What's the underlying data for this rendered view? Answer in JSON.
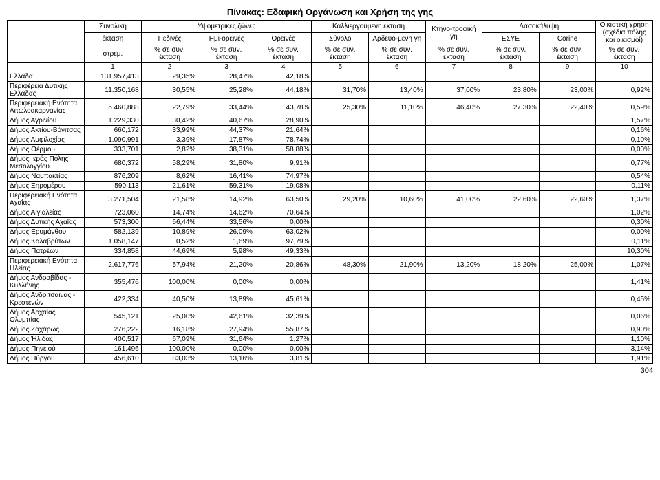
{
  "title": "Πίνακας: Εδαφική Οργάνωση και Χρήση της γης",
  "page_number": "304",
  "header": {
    "r1": {
      "c1": "Συνολική",
      "c2": "Υψομετρικές ζώνες",
      "c3": "Καλλιεργούμενη έκταση",
      "c4": "Κτηνο-τροφική γη",
      "c5": "Δασοκάλυψη",
      "c6": "Οικιστική χρήση (σχέδια πόλης και οικισμοί)"
    },
    "r2": {
      "c1": "έκταση",
      "c2": "Πεδινές",
      "c3": "Ημι-ορεινές",
      "c4": "Ορεινές",
      "c5": "Σύνολο",
      "c6": "Αρδευό-μενη γη",
      "c7": "ΕΣΥΕ",
      "c8": "Corine"
    },
    "r3": {
      "c1": "στρεμ.",
      "c2": "% σε συν. έκταση",
      "c3": "% σε συν. έκταση",
      "c4": "% σε συν. έκταση",
      "c5": "% σε συν. έκταση",
      "c6": "% σε συν. έκταση",
      "c7": "% σε συν. έκταση",
      "c8": "% σε συν. έκταση",
      "c9": "% σε συν. έκταση",
      "c10": "% σε συν. έκταση"
    },
    "r4": [
      "1",
      "2",
      "3",
      "4",
      "5",
      "6",
      "7",
      "8",
      "9",
      "10"
    ]
  },
  "rows": [
    {
      "label": "Ελλάδα",
      "c": [
        "131.957,413",
        "29,35%",
        "28,47%",
        "42,18%",
        "",
        "",
        "",
        "",
        "",
        ""
      ]
    },
    {
      "label": "Περιφέρεια Δυτικής Ελλάδας",
      "c": [
        "11.350,168",
        "30,55%",
        "25,28%",
        "44,18%",
        "31,70%",
        "13,40%",
        "37,00%",
        "23,80%",
        "23,00%",
        "0,92%"
      ]
    },
    {
      "label": "Περιφερειακή Ενότητα Αιτωλοακαρνανίας",
      "c": [
        "5.460,888",
        "22,79%",
        "33,44%",
        "43,78%",
        "25,30%",
        "11,10%",
        "46,40%",
        "27,30%",
        "22,40%",
        "0,59%"
      ]
    },
    {
      "label": "Δήμος Αγρινίου",
      "c": [
        "1.229,330",
        "30,42%",
        "40,67%",
        "28,90%",
        "",
        "",
        "",
        "",
        "",
        "1,57%"
      ]
    },
    {
      "label": "Δήμος Ακτίου-Βόνιτσας",
      "c": [
        "660,172",
        "33,99%",
        "44,37%",
        "21,64%",
        "",
        "",
        "",
        "",
        "",
        "0,16%"
      ]
    },
    {
      "label": "Δήμος Αμφιλοχίας",
      "c": [
        "1.090,991",
        "3,39%",
        "17,87%",
        "78,74%",
        "",
        "",
        "",
        "",
        "",
        "0,10%"
      ]
    },
    {
      "label": "Δήμος Θέρμου",
      "c": [
        "333,701",
        "2,82%",
        "38,31%",
        "58,88%",
        "",
        "",
        "",
        "",
        "",
        "0,00%"
      ]
    },
    {
      "label": "Δήμος Ιεράς Πόλης Μεσολογγίου",
      "c": [
        "680,372",
        "58,29%",
        "31,80%",
        "9,91%",
        "",
        "",
        "",
        "",
        "",
        "0,77%"
      ]
    },
    {
      "label": "Δήμος Ναυπακτίας",
      "c": [
        "876,209",
        "8,62%",
        "16,41%",
        "74,97%",
        "",
        "",
        "",
        "",
        "",
        "0,54%"
      ]
    },
    {
      "label": "Δήμος Ξηρομέρου",
      "c": [
        "590,113",
        "21,61%",
        "59,31%",
        "19,08%",
        "",
        "",
        "",
        "",
        "",
        "0,11%"
      ]
    },
    {
      "label": "Περιφερειακή Ενότητα Αχαΐας",
      "c": [
        "3.271,504",
        "21,58%",
        "14,92%",
        "63,50%",
        "29,20%",
        "10,60%",
        "41,00%",
        "22,60%",
        "22,60%",
        "1,37%"
      ]
    },
    {
      "label": "Δήμος Αιγιαλείας",
      "c": [
        "723,060",
        "14,74%",
        "14,62%",
        "70,64%",
        "",
        "",
        "",
        "",
        "",
        "1,02%"
      ]
    },
    {
      "label": "Δήμος Δυτικής Αχαΐας",
      "c": [
        "573,300",
        "66,44%",
        "33,56%",
        "0,00%",
        "",
        "",
        "",
        "",
        "",
        "0,30%"
      ]
    },
    {
      "label": "Δήμος Ερυμάνθου",
      "c": [
        "582,139",
        "10,89%",
        "26,09%",
        "63,02%",
        "",
        "",
        "",
        "",
        "",
        "0,00%"
      ]
    },
    {
      "label": "Δήμος Καλαβρύτων",
      "c": [
        "1.058,147",
        "0,52%",
        "1,69%",
        "97,79%",
        "",
        "",
        "",
        "",
        "",
        "0,11%"
      ]
    },
    {
      "label": "Δήμος Πατρέων",
      "c": [
        "334,858",
        "44,69%",
        "5,98%",
        "49,33%",
        "",
        "",
        "",
        "",
        "",
        "10,30%"
      ]
    },
    {
      "label": "Περιφερειακή Ενότητα Ηλείας",
      "c": [
        "2.617,776",
        "57,94%",
        "21,20%",
        "20,86%",
        "48,30%",
        "21,90%",
        "13,20%",
        "18,20%",
        "25,00%",
        "1,07%"
      ]
    },
    {
      "label": "Δήμος Ανδραβίδας - Κυλλήνης",
      "c": [
        "355,476",
        "100,00%",
        "0,00%",
        "0,00%",
        "",
        "",
        "",
        "",
        "",
        "1,41%"
      ]
    },
    {
      "label": "Δήμος Ανδρίτσαινας - Κρεστενών",
      "c": [
        "422,334",
        "40,50%",
        "13,89%",
        "45,61%",
        "",
        "",
        "",
        "",
        "",
        "0,45%"
      ]
    },
    {
      "label": "Δήμος Αρχαίας Ολυμπίας",
      "c": [
        "545,121",
        "25,00%",
        "42,61%",
        "32,39%",
        "",
        "",
        "",
        "",
        "",
        "0,06%"
      ]
    },
    {
      "label": "Δήμος Ζαχάρως",
      "c": [
        "276,222",
        "16,18%",
        "27,94%",
        "55,87%",
        "",
        "",
        "",
        "",
        "",
        "0,90%"
      ]
    },
    {
      "label": "Δήμος Ήλιδας",
      "c": [
        "400,517",
        "67,09%",
        "31,64%",
        "1,27%",
        "",
        "",
        "",
        "",
        "",
        "1,10%"
      ]
    },
    {
      "label": "Δήμος Πηνειού",
      "c": [
        "161,496",
        "100,00%",
        "0,00%",
        "0,00%",
        "",
        "",
        "",
        "",
        "",
        "3,14%"
      ]
    },
    {
      "label": "Δήμος Πύργου",
      "c": [
        "456,610",
        "83,03%",
        "13,16%",
        "3,81%",
        "",
        "",
        "",
        "",
        "",
        "1,91%"
      ]
    }
  ]
}
